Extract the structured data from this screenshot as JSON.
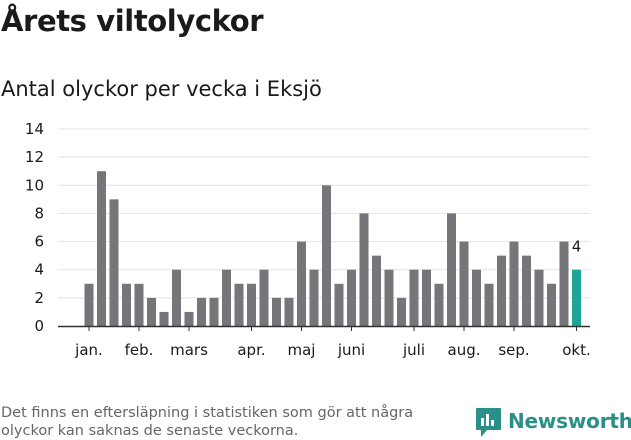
{
  "title": "Årets viltolyckor",
  "subtitle": "Antal olyckor per vecka i Eksjö",
  "footnote": "Det finns en eftersläpning i statistiken som gör att några olyckor kan saknas de senaste veckorna.",
  "brand": {
    "name": "Newsworthy",
    "icon": "newsworthy-logo-icon"
  },
  "colors": {
    "bar": "#76757a",
    "highlight": "#1fa596",
    "grid": "#e3e3e3",
    "axis": "#333333",
    "brand": "#2b8f89"
  },
  "chart_data": {
    "type": "bar",
    "title": "",
    "xlabel": "",
    "ylabel": "",
    "ylim": [
      0,
      14
    ],
    "yticks": [
      0,
      2,
      4,
      6,
      8,
      10,
      12,
      14
    ],
    "grid": true,
    "legend": "none",
    "values": [
      3,
      11,
      9,
      3,
      3,
      2,
      1,
      4,
      1,
      2,
      2,
      4,
      3,
      3,
      4,
      2,
      2,
      6,
      4,
      10,
      3,
      4,
      8,
      5,
      4,
      2,
      4,
      4,
      3,
      8,
      6,
      4,
      3,
      5,
      6,
      5,
      4,
      3,
      6,
      4
    ],
    "highlight_index": 39,
    "highlight_label": "4",
    "month_labels": [
      {
        "label": "jan.",
        "bar_index": 0
      },
      {
        "label": "feb.",
        "bar_index": 4
      },
      {
        "label": "mars",
        "bar_index": 8
      },
      {
        "label": "apr.",
        "bar_index": 13
      },
      {
        "label": "maj",
        "bar_index": 17
      },
      {
        "label": "juni",
        "bar_index": 21
      },
      {
        "label": "juli",
        "bar_index": 26
      },
      {
        "label": "aug.",
        "bar_index": 30
      },
      {
        "label": "sep.",
        "bar_index": 34
      },
      {
        "label": "okt.",
        "bar_index": 39
      }
    ]
  }
}
